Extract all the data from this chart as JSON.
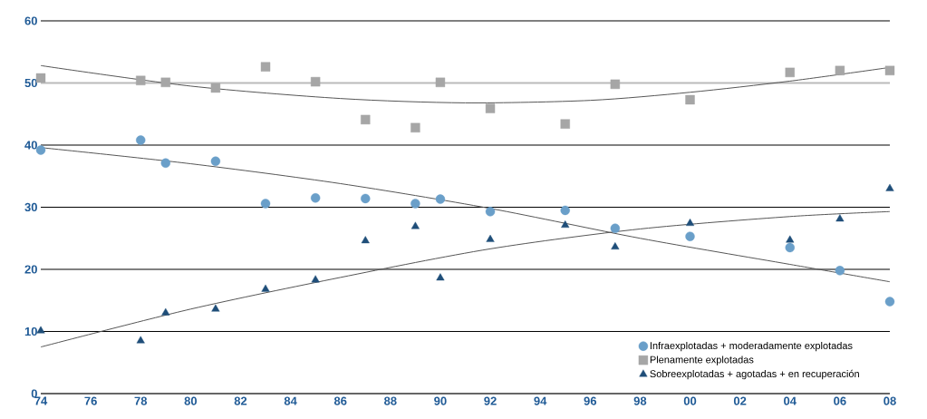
{
  "chart_data": {
    "type": "scatter",
    "xlim": [
      1974,
      2008
    ],
    "ylim": [
      0,
      60
    ],
    "xticks": [
      {
        "value": 1974,
        "label": "74"
      },
      {
        "value": 1976,
        "label": "76"
      },
      {
        "value": 1978,
        "label": "78"
      },
      {
        "value": 1980,
        "label": "80"
      },
      {
        "value": 1982,
        "label": "82"
      },
      {
        "value": 1984,
        "label": "84"
      },
      {
        "value": 1986,
        "label": "86"
      },
      {
        "value": 1988,
        "label": "88"
      },
      {
        "value": 1990,
        "label": "90"
      },
      {
        "value": 1992,
        "label": "92"
      },
      {
        "value": 1994,
        "label": "94"
      },
      {
        "value": 1996,
        "label": "96"
      },
      {
        "value": 1998,
        "label": "98"
      },
      {
        "value": 2000,
        "label": "00"
      },
      {
        "value": 2002,
        "label": "02"
      },
      {
        "value": 2004,
        "label": "04"
      },
      {
        "value": 2006,
        "label": "06"
      },
      {
        "value": 2008,
        "label": "08"
      }
    ],
    "yticks": [
      0,
      10,
      20,
      30,
      40,
      50,
      60
    ],
    "grid": "y",
    "legend": "bottom right",
    "ref_lines": [
      {
        "axis": "y",
        "value": 50,
        "label": null,
        "color": "#bbbbbb"
      }
    ],
    "series": [
      {
        "name": "Infraexplotadas + moderadamente explotadas",
        "color": "#6a9fc9",
        "marker": "circle",
        "x": [
          1974,
          1978,
          1979,
          1981,
          1983,
          1985,
          1987,
          1989,
          1990,
          1992,
          1995,
          1997,
          2000,
          2004,
          2006,
          2008
        ],
        "values": [
          39.2,
          40.8,
          37.1,
          37.4,
          30.6,
          31.5,
          31.4,
          30.6,
          31.3,
          29.3,
          29.5,
          26.6,
          25.3,
          23.5,
          19.8,
          14.8
        ]
      },
      {
        "name": "Plenamente explotadas",
        "color": "#a6a6a6",
        "marker": "square",
        "x": [
          1974,
          1978,
          1979,
          1981,
          1983,
          1985,
          1987,
          1989,
          1990,
          1992,
          1995,
          1997,
          2000,
          2004,
          2006,
          2008
        ],
        "values": [
          50.8,
          50.4,
          50.1,
          49.2,
          52.6,
          50.2,
          44.1,
          42.8,
          50.1,
          45.9,
          43.4,
          49.8,
          47.3,
          51.7,
          52.0,
          52.0
        ]
      },
      {
        "name": "Sobreexplotadas + agotadas + en recuperación",
        "color": "#1f4e79",
        "marker": "triangle",
        "x": [
          1974,
          1978,
          1979,
          1981,
          1983,
          1985,
          1987,
          1989,
          1990,
          1992,
          1995,
          1997,
          2000,
          2004,
          2006,
          2008
        ],
        "values": [
          10.1,
          8.5,
          13.0,
          13.6,
          16.8,
          18.3,
          24.6,
          26.9,
          18.6,
          24.8,
          27.1,
          23.6,
          27.4,
          24.7,
          28.1,
          33.0
        ]
      },
      {
        "type": "line",
        "color": "#555555",
        "marker": "none",
        "x": [
          1974,
          1980,
          1986,
          1991,
          1996,
          2000,
          2004,
          2008
        ],
        "values": [
          52.8,
          49.5,
          47.5,
          46.8,
          47.2,
          48.5,
          50.3,
          52.5
        ]
      },
      {
        "type": "line",
        "color": "#555555",
        "marker": "none",
        "x": [
          1974,
          1980,
          1986,
          1992,
          1998,
          2004,
          2008
        ],
        "values": [
          39.6,
          37.0,
          33.8,
          29.8,
          25.0,
          20.8,
          18.0
        ]
      },
      {
        "type": "line",
        "color": "#555555",
        "marker": "none",
        "x": [
          1974,
          1980,
          1986,
          1992,
          1998,
          2004,
          2008
        ],
        "values": [
          7.5,
          13.6,
          18.7,
          23.3,
          26.5,
          28.5,
          29.3
        ]
      }
    ]
  }
}
